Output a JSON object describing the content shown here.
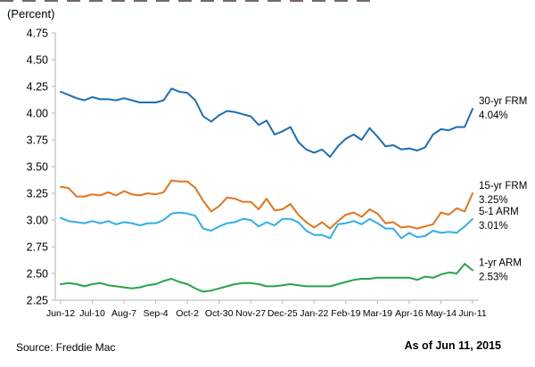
{
  "footer": {
    "source": "Source: Freddie Mac",
    "as_of": "As of Jun 11, 2015"
  },
  "chart_data": {
    "type": "line",
    "title": "",
    "ylabel": "(Percent)",
    "xlabel": "",
    "ylim": [
      2.25,
      4.75
    ],
    "ytick_step": 0.25,
    "grid": false,
    "legend_position": "right-of-line-ends",
    "axis_color": "#c2c2c2",
    "y_tick_labels": [
      "4.75",
      "4.50",
      "4.25",
      "4.00",
      "3.75",
      "3.50",
      "3.25",
      "3.00",
      "2.75",
      "2.50",
      "2.25"
    ],
    "x_tick_labels": [
      "Jun-12",
      "Jul-10",
      "Aug-7",
      "Sep-4",
      "Oct-2",
      "Oct-30",
      "Nov-27",
      "Dec-25",
      "Jan-22",
      "Feb-19",
      "Mar-19",
      "Apr-16",
      "May-14",
      "Jun-11"
    ],
    "x_tick_every_n_points": 4,
    "points_count": 53,
    "series": [
      {
        "name": "30-yr FRM",
        "end_value_label": "4.04%",
        "color": "#1e6db6",
        "values": [
          4.2,
          4.17,
          4.14,
          4.12,
          4.15,
          4.13,
          4.13,
          4.12,
          4.14,
          4.12,
          4.1,
          4.1,
          4.1,
          4.12,
          4.23,
          4.2,
          4.19,
          4.12,
          3.97,
          3.92,
          3.98,
          4.02,
          4.01,
          3.99,
          3.97,
          3.89,
          3.93,
          3.8,
          3.83,
          3.87,
          3.73,
          3.66,
          3.63,
          3.66,
          3.59,
          3.69,
          3.76,
          3.8,
          3.75,
          3.86,
          3.78,
          3.69,
          3.7,
          3.66,
          3.67,
          3.65,
          3.68,
          3.8,
          3.85,
          3.84,
          3.87,
          3.87,
          4.04
        ]
      },
      {
        "name": "15-yr FRM",
        "end_value_label": "3.25%",
        "color": "#e2751c",
        "values": [
          3.31,
          3.3,
          3.22,
          3.22,
          3.24,
          3.23,
          3.26,
          3.23,
          3.27,
          3.24,
          3.23,
          3.25,
          3.24,
          3.26,
          3.37,
          3.36,
          3.36,
          3.3,
          3.18,
          3.08,
          3.13,
          3.21,
          3.2,
          3.17,
          3.17,
          3.1,
          3.2,
          3.09,
          3.1,
          3.15,
          3.05,
          2.98,
          2.93,
          2.98,
          2.92,
          2.99,
          3.05,
          3.07,
          3.03,
          3.1,
          3.06,
          2.97,
          2.98,
          2.93,
          2.94,
          2.92,
          2.94,
          2.96,
          3.07,
          3.05,
          3.11,
          3.08,
          3.25
        ]
      },
      {
        "name": "5-1 ARM",
        "end_value_label": "3.01%",
        "color": "#2fb0e8",
        "values": [
          3.02,
          2.99,
          2.98,
          2.97,
          2.99,
          2.97,
          2.99,
          2.96,
          2.98,
          2.97,
          2.95,
          2.97,
          2.97,
          3.0,
          3.06,
          3.07,
          3.06,
          3.04,
          2.92,
          2.9,
          2.94,
          2.97,
          2.98,
          3.01,
          3.0,
          2.94,
          2.98,
          2.95,
          3.01,
          3.01,
          2.98,
          2.9,
          2.86,
          2.86,
          2.83,
          2.96,
          2.97,
          2.99,
          2.96,
          3.01,
          2.97,
          2.92,
          2.92,
          2.83,
          2.88,
          2.84,
          2.85,
          2.9,
          2.88,
          2.89,
          2.88,
          2.94,
          3.01
        ]
      },
      {
        "name": "1-yr ARM",
        "end_value_label": "2.53%",
        "color": "#26a447",
        "values": [
          2.4,
          2.41,
          2.4,
          2.38,
          2.4,
          2.41,
          2.39,
          2.38,
          2.37,
          2.36,
          2.37,
          2.39,
          2.4,
          2.43,
          2.45,
          2.42,
          2.4,
          2.36,
          2.33,
          2.34,
          2.36,
          2.38,
          2.4,
          2.41,
          2.41,
          2.4,
          2.38,
          2.38,
          2.39,
          2.4,
          2.39,
          2.38,
          2.38,
          2.38,
          2.38,
          2.4,
          2.42,
          2.44,
          2.45,
          2.45,
          2.46,
          2.46,
          2.46,
          2.46,
          2.46,
          2.44,
          2.47,
          2.46,
          2.49,
          2.51,
          2.5,
          2.59,
          2.53
        ]
      }
    ]
  }
}
